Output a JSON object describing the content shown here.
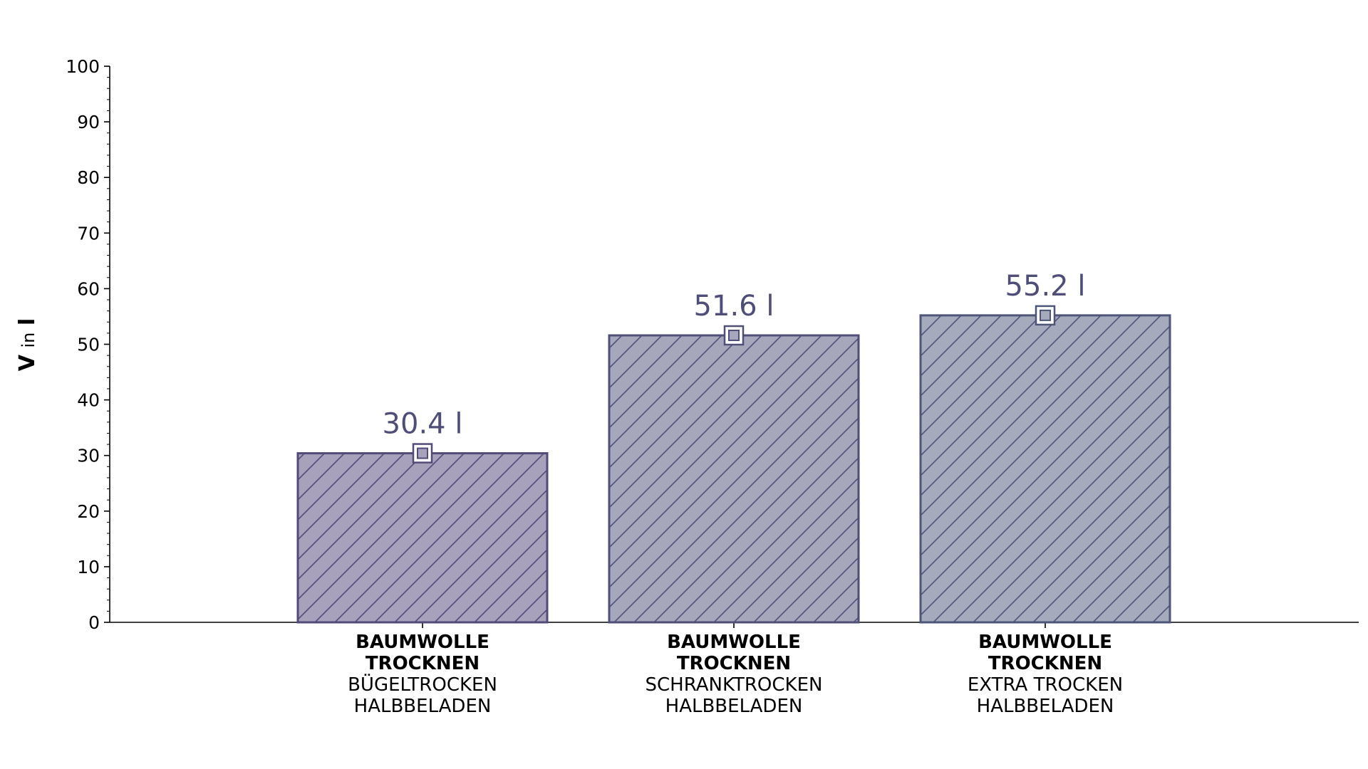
{
  "chart_data": {
    "type": "bar",
    "ylabel": {
      "main": "V",
      "connector": "in",
      "unit": "l"
    },
    "ylim": [
      0,
      100
    ],
    "yticks": [
      0,
      10,
      20,
      30,
      40,
      50,
      60,
      70,
      80,
      90,
      100
    ],
    "categories": [
      {
        "lines_bold": [
          "BAUMWOLLE",
          "TROCKNEN"
        ],
        "lines": [
          "BÜGELTROCKEN",
          "HALBBELADEN"
        ]
      },
      {
        "lines_bold": [
          "BAUMWOLLE",
          "TROCKNEN"
        ],
        "lines": [
          "SCHRANKTROCKEN",
          "HALBBELADEN"
        ]
      },
      {
        "lines_bold": [
          "BAUMWOLLE",
          "TROCKNEN"
        ],
        "lines": [
          "EXTRA TROCKEN",
          "HALBBELADEN"
        ]
      }
    ],
    "values": [
      30.4,
      51.6,
      55.2
    ],
    "value_labels": [
      "30.4 l",
      "51.6 l",
      "55.2 l"
    ],
    "grid": false,
    "colors": {
      "fills": [
        "#a7a1bb",
        "#a6a7bb",
        "#a5abbc"
      ],
      "edges": [
        "#524a78",
        "#4f4f78",
        "#4d5578"
      ],
      "label": "#4e4e78"
    }
  }
}
